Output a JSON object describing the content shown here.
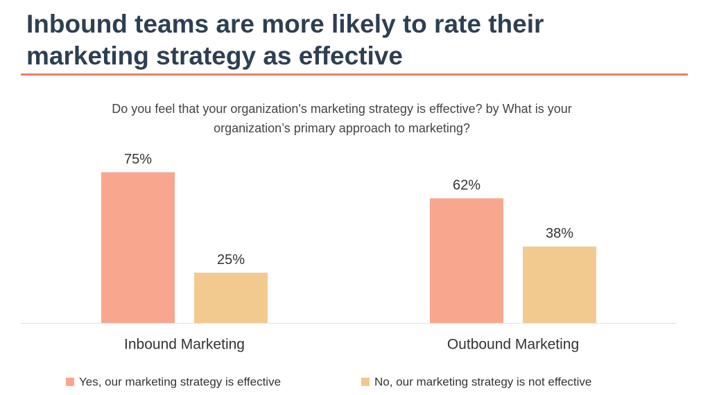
{
  "chart_data": {
    "type": "bar",
    "title": "Inbound teams are more likely to rate their marketing strategy as effective",
    "subtitle": "Do you feel that your organization's marketing strategy is effective? by What is your organization’s primary approach to marketing?",
    "categories": [
      "Inbound Marketing",
      "Outbound Marketing"
    ],
    "series": [
      {
        "name": "Yes, our marketing strategy is effective",
        "color": "#f9a68e",
        "values": [
          75,
          62
        ],
        "value_labels": [
          "75%",
          "62%"
        ]
      },
      {
        "name": "No, our marketing strategy is not effective",
        "color": "#f2c98f",
        "values": [
          25,
          38
        ],
        "value_labels": [
          "25%",
          "38%"
        ]
      }
    ]
  }
}
